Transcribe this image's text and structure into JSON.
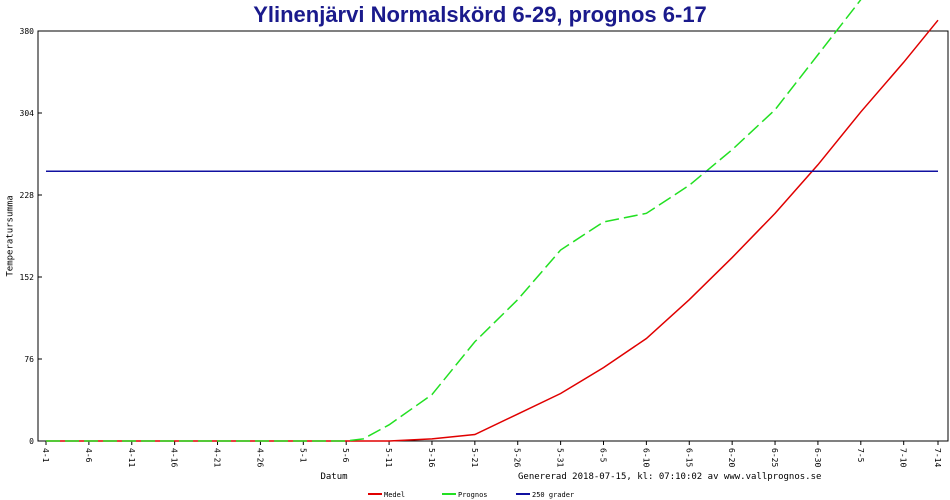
{
  "chart_data": {
    "type": "line",
    "title": "Ylinenjärvi Normalskörd 6-29, prognos 6-17",
    "y_label": "Temperatursumma",
    "x_label": "Datum",
    "footer": "Genererad 2018-07-15, kl: 07:10:02 av www.vallprognos.se",
    "x": [
      0,
      5,
      10,
      15,
      20,
      25,
      30,
      35,
      37,
      40,
      45,
      50,
      55,
      60,
      65,
      70,
      75,
      80,
      85,
      90,
      95,
      100,
      104
    ],
    "series": [
      {
        "name": "Medel",
        "color": "#e00000",
        "dashed": false,
        "values": [
          0,
          0,
          0,
          0,
          0,
          0,
          0,
          0,
          0,
          0,
          2,
          6,
          25,
          44,
          68,
          95,
          131,
          170,
          211,
          256,
          305,
          351,
          390
        ]
      },
      {
        "name": "Prognos",
        "color": "#22e022",
        "dashed": true,
        "values": [
          0,
          0,
          0,
          0,
          0,
          0,
          0,
          0,
          2,
          15,
          43,
          92,
          131,
          177,
          203,
          211,
          237,
          270,
          307,
          358,
          409,
          null,
          null
        ]
      },
      {
        "name": "250 grader",
        "color": "#1010a0",
        "dashed": false,
        "values": [
          250,
          250,
          250,
          250,
          250,
          250,
          250,
          250,
          250,
          250,
          250,
          250,
          250,
          250,
          250,
          250,
          250,
          250,
          250,
          250,
          250,
          250,
          250
        ]
      }
    ],
    "xlim": [
      0,
      104
    ],
    "xticks": [
      {
        "value": 0,
        "label": "4-1"
      },
      {
        "value": 5,
        "label": "4-6"
      },
      {
        "value": 10,
        "label": "4-11"
      },
      {
        "value": 15,
        "label": "4-16"
      },
      {
        "value": 20,
        "label": "4-21"
      },
      {
        "value": 25,
        "label": "4-26"
      },
      {
        "value": 30,
        "label": "5-1"
      },
      {
        "value": 35,
        "label": "5-6"
      },
      {
        "value": 40,
        "label": "5-11"
      },
      {
        "value": 45,
        "label": "5-16"
      },
      {
        "value": 50,
        "label": "5-21"
      },
      {
        "value": 55,
        "label": "5-26"
      },
      {
        "value": 60,
        "label": "5-31"
      },
      {
        "value": 65,
        "label": "6-5"
      },
      {
        "value": 70,
        "label": "6-10"
      },
      {
        "value": 75,
        "label": "6-15"
      },
      {
        "value": 80,
        "label": "6-20"
      },
      {
        "value": 85,
        "label": "6-25"
      },
      {
        "value": 90,
        "label": "6-30"
      },
      {
        "value": 95,
        "label": "7-5"
      },
      {
        "value": 100,
        "label": "7-10"
      },
      {
        "value": 104,
        "label": "7-14"
      }
    ],
    "ylim": [
      0,
      380
    ],
    "yticks": [
      0,
      76,
      152,
      228,
      304,
      380
    ]
  }
}
